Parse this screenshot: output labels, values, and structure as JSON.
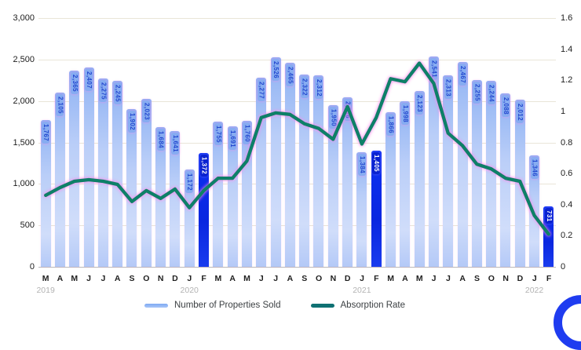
{
  "chart_data": {
    "type": "combo-bar-line",
    "categories": [
      "M",
      "A",
      "M",
      "J",
      "J",
      "A",
      "S",
      "O",
      "N",
      "D",
      "J",
      "F",
      "M",
      "A",
      "M",
      "J",
      "J",
      "A",
      "S",
      "O",
      "N",
      "D",
      "J",
      "F",
      "M",
      "A",
      "M",
      "J",
      "J",
      "A",
      "S",
      "O",
      "N",
      "D",
      "J",
      "F"
    ],
    "years": [
      {
        "label": "2019",
        "month_index": 0
      },
      {
        "label": "2020",
        "month_index": 10
      },
      {
        "label": "2021",
        "month_index": 22
      },
      {
        "label": "2022",
        "month_index": 34
      }
    ],
    "series": [
      {
        "name": "Number of Properties Sold",
        "type": "bar",
        "axis": "left",
        "values": [
          1767,
          2105,
          2365,
          2407,
          2275,
          2245,
          1902,
          2023,
          1684,
          1641,
          1172,
          1372,
          1755,
          1691,
          1760,
          2277,
          2526,
          2465,
          2322,
          2312,
          1950,
          2046,
          1384,
          1405,
          1866,
          1998,
          2123,
          2541,
          2313,
          2467,
          2255,
          2244,
          2088,
          2012,
          1346,
          731
        ],
        "display_values": [
          "1,767",
          "2,105",
          "2,365",
          "2,407",
          "2,275",
          "2,245",
          "1,902",
          "2,023",
          "1,684",
          "1,641",
          "1,172",
          "1,372",
          "1,755",
          "1,691",
          "1,760",
          "2,277",
          "2,526",
          "2,465",
          "2,322",
          "2,312",
          "1,950",
          "2,046",
          "1,384",
          "1,405",
          "1,866",
          "1,998",
          "2,123",
          "2,541",
          "2,313",
          "2,467",
          "2,255",
          "2,244",
          "2,088",
          "2,012",
          "1,346",
          "731"
        ],
        "highlight_indices": [
          11,
          23,
          35
        ]
      },
      {
        "name": "Absorption Rate",
        "type": "line",
        "axis": "right",
        "values": [
          0.46,
          0.51,
          0.55,
          0.56,
          0.55,
          0.53,
          0.42,
          0.49,
          0.44,
          0.5,
          0.38,
          0.49,
          0.57,
          0.57,
          0.68,
          0.96,
          0.99,
          0.98,
          0.92,
          0.89,
          0.82,
          1.03,
          0.79,
          0.96,
          1.21,
          1.19,
          1.31,
          1.18,
          0.86,
          0.78,
          0.66,
          0.63,
          0.57,
          0.55,
          0.33,
          0.21
        ]
      }
    ],
    "left_axis": {
      "min": 0,
      "max": 3000,
      "step": 500,
      "tick_labels": [
        "3,000",
        "2,500",
        "2,000",
        "1,500",
        "1,000",
        "500",
        "0"
      ],
      "tick_values": [
        3000,
        2500,
        2000,
        1500,
        1000,
        500,
        0
      ]
    },
    "right_axis": {
      "min": 0,
      "max": 1.6,
      "step": 0.2,
      "tick_labels": [
        "1.6",
        "1.4",
        "1.2",
        "1",
        "0.8",
        "0.6",
        "0.4",
        "0.2",
        "0"
      ],
      "tick_values": [
        1.6,
        1.4,
        1.2,
        1.0,
        0.8,
        0.6,
        0.4,
        0.2,
        0
      ]
    },
    "grid": true,
    "legend_position": "bottom",
    "colors": {
      "bar_light": "#a9c5f6",
      "bar_dark": "#0b2be8",
      "bar_label_blue": "#2348cf",
      "bar_label_white": "#ffffff",
      "line_teal": "#0e8068",
      "glow_pink": "#ff82eb",
      "year_gray": "#b3b3b3",
      "ring_blue": "#1f3cf0"
    }
  },
  "legend": {
    "bars_label": "Number of Properties Sold",
    "line_label": "Absorption Rate"
  }
}
